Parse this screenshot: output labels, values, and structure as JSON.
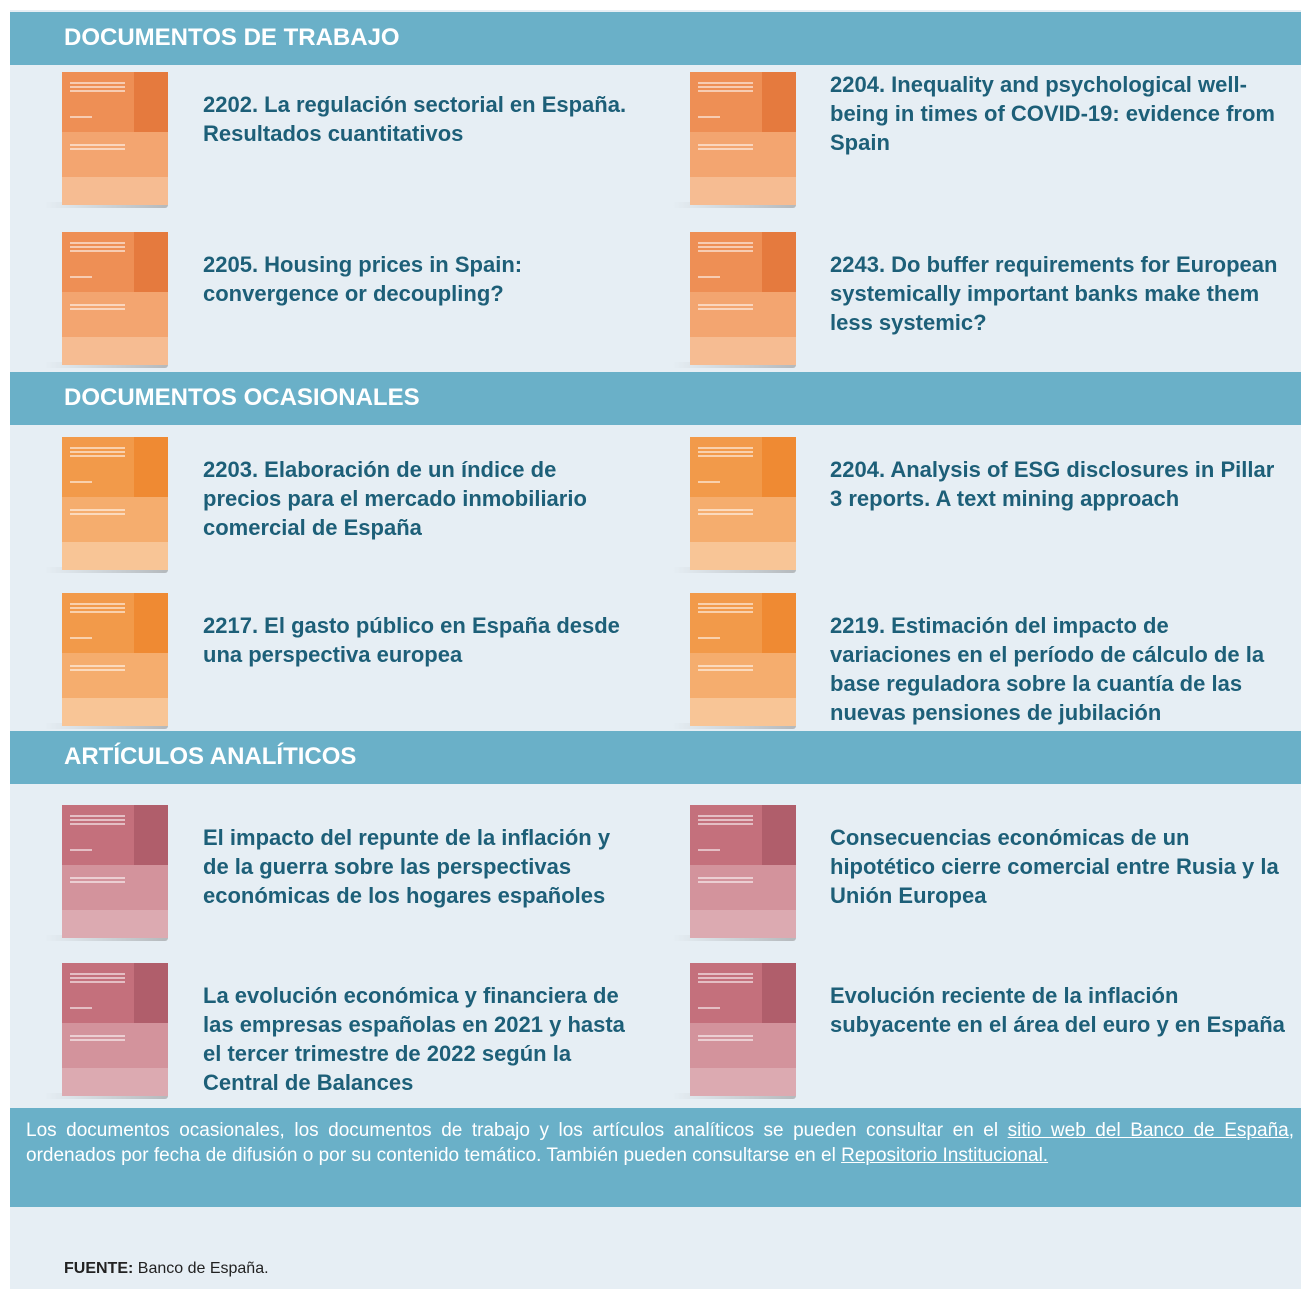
{
  "sections": [
    {
      "title": "DOCUMENTOS DE TRABAJO",
      "items": [
        "2202. La regulación sectorial en España. Resultados cuantitativos",
        "2204. Inequality and psychological well-being in times of COVID-19: evidence from Spain",
        "2205. Housing prices in Spain: convergence or decoupling?",
        "2243. Do buffer requirements for European systemically important banks make them less systemic?"
      ]
    },
    {
      "title": "DOCUMENTOS OCASIONALES",
      "items": [
        "2203. Elaboración de un índice de precios para el mercado inmobiliario comercial de España",
        "2204. Analysis of ESG disclosures in Pillar 3 reports. A text mining approach",
        "2217. El gasto público en España desde una perspectiva europea",
        "2219. Estimación del impacto de variaciones en el período de cálculo de la base reguladora sobre la cuantía de las nuevas pensiones de jubilación"
      ]
    },
    {
      "title": "ARTÍCULOS ANALÍTICOS",
      "items": [
        "El impacto del repunte de la inflación y de la guerra sobre las perspectivas económicas de los hogares españoles",
        "Consecuencias económicas de un hipotético cierre comercial entre Rusia y la Unión Europea",
        "La evolución económica y financiera de las empresas españolas en 2021 y hasta el tercer trimestre de 2022 según la Central de Balances",
        "Evolución reciente de la inflación subyacente en el área del euro y en España"
      ]
    }
  ],
  "note": {
    "text_before": "Los documentos ocasionales, los documentos de trabajo y los artículos analíticos se pueden consultar en el ",
    "link_1": "sitio web del Banco de España",
    "text_middle": ", ordenados por fecha de difusión o por su contenido temático. También pueden consultarse en el ",
    "link_2": "Repositorio Institucional."
  },
  "source": {
    "label": "FUENTE:",
    "text": "Banco de España."
  }
}
